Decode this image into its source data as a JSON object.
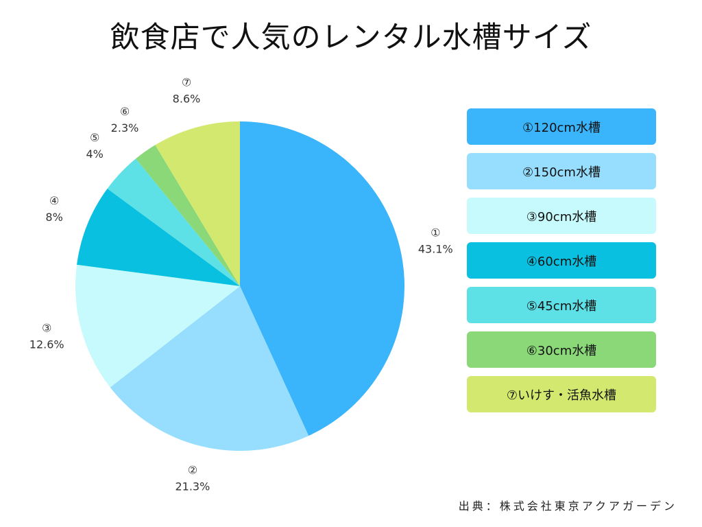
{
  "title": "飲食店で人気のレンタル水槽サイズ",
  "source": "出典：株式会社東京アクアガーデン",
  "chart_data": {
    "type": "pie",
    "title": "飲食店で人気のレンタル水槽サイズ",
    "legend_position": "right",
    "start": "top",
    "direction": "clockwise",
    "slices": [
      {
        "marker": "①",
        "label": "①120cm水槽",
        "value": 43.1,
        "value_label": "43.1%",
        "color": "#3AB4FB"
      },
      {
        "marker": "②",
        "label": "②150cm水槽",
        "value": 21.3,
        "value_label": "21.3%",
        "color": "#97DEFE"
      },
      {
        "marker": "③",
        "label": "③90cm水槽",
        "value": 12.6,
        "value_label": "12.6%",
        "color": "#C7FAFC"
      },
      {
        "marker": "④",
        "label": "④60cm水槽",
        "value": 8,
        "value_label": "8%",
        "color": "#0AC0E0"
      },
      {
        "marker": "⑤",
        "label": "⑤45cm水槽",
        "value": 4,
        "value_label": "4%",
        "color": "#5DE0E6"
      },
      {
        "marker": "⑥",
        "label": "⑥30cm水槽",
        "value": 2.3,
        "value_label": "2.3%",
        "color": "#8AD878"
      },
      {
        "marker": "⑦",
        "label": "⑦いけす・活魚水槽",
        "value": 8.6,
        "value_label": "8.6%",
        "color": "#D3E86F"
      }
    ]
  }
}
